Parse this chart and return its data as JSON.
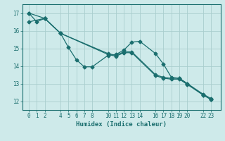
{
  "xlabel": "Humidex (Indice chaleur)",
  "bg_color": "#ceeaea",
  "grid_color": "#aacece",
  "line_color": "#1a6e6e",
  "line1_x": [
    0,
    2,
    4,
    10,
    11,
    12,
    13,
    16,
    17,
    18,
    19,
    20,
    22,
    23
  ],
  "line1_y": [
    17.0,
    16.7,
    15.85,
    14.65,
    14.55,
    14.75,
    14.75,
    13.45,
    13.3,
    13.25,
    13.25,
    12.95,
    12.35,
    12.1
  ],
  "line2_x": [
    0,
    1,
    2,
    4,
    10,
    11,
    12,
    13,
    16,
    17,
    18,
    19,
    20,
    22,
    23
  ],
  "line2_y": [
    17.0,
    16.5,
    16.7,
    15.85,
    14.7,
    14.6,
    14.8,
    14.8,
    13.5,
    13.35,
    13.3,
    13.3,
    13.0,
    12.4,
    12.15
  ],
  "line3_x": [
    0,
    2,
    4,
    5,
    6,
    7,
    8,
    10,
    11,
    12,
    13,
    14,
    16,
    17,
    18,
    19,
    20,
    22,
    23
  ],
  "line3_y": [
    16.5,
    16.7,
    15.85,
    15.05,
    14.35,
    13.95,
    13.95,
    14.6,
    14.65,
    14.9,
    15.35,
    15.4,
    14.7,
    14.1,
    13.35,
    13.3,
    13.0,
    12.35,
    12.1
  ],
  "xticks": [
    0,
    1,
    2,
    4,
    5,
    6,
    7,
    8,
    10,
    11,
    12,
    13,
    14,
    16,
    17,
    18,
    19,
    20,
    22,
    23
  ],
  "yticks": [
    12,
    13,
    14,
    15,
    16,
    17
  ],
  "xlim": [
    -0.8,
    24.2
  ],
  "ylim": [
    11.5,
    17.5
  ]
}
